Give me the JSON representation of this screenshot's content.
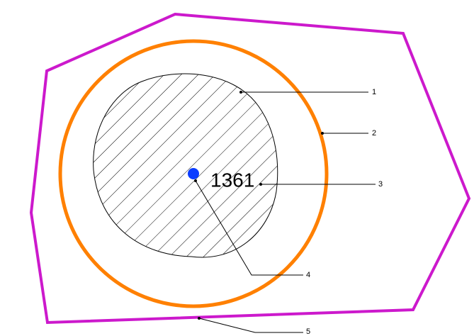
{
  "center_label": "1361",
  "callouts": [
    "1",
    "2",
    "3",
    "4",
    "5"
  ]
}
